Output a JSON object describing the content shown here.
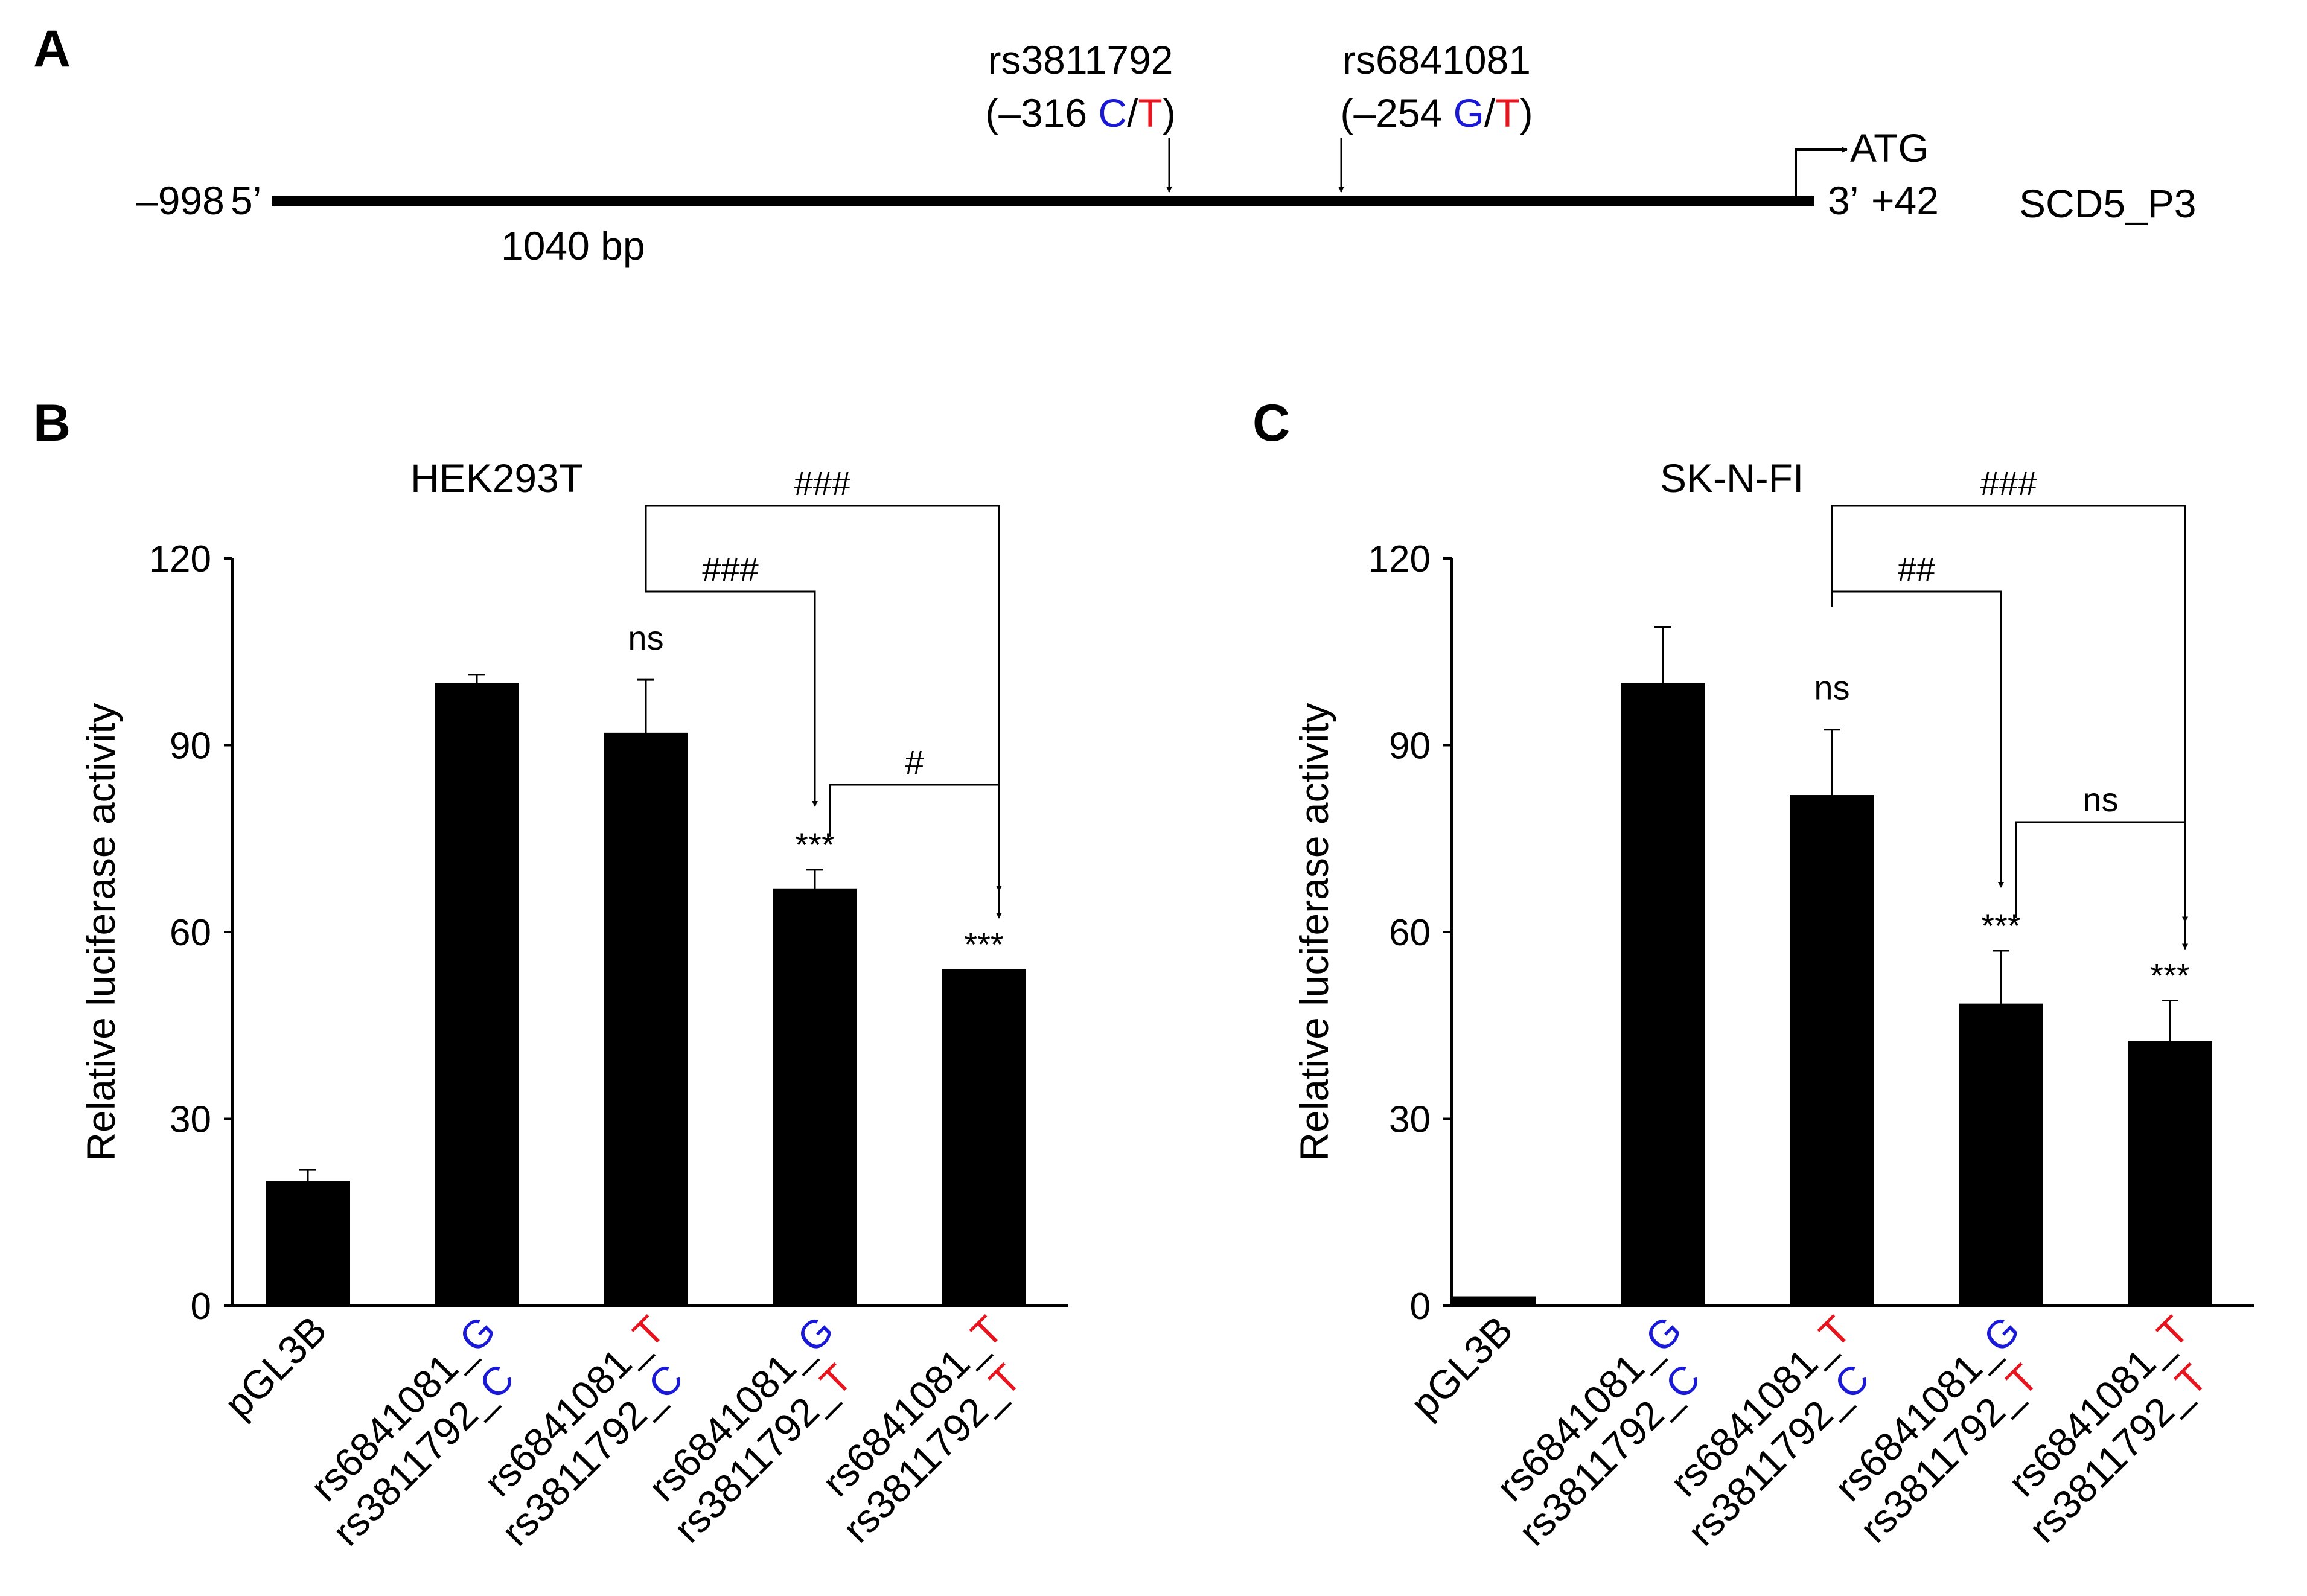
{
  "colors": {
    "allele_blue": "#1a1ad6",
    "allele_red": "#e8141e",
    "bar": "#000000"
  },
  "panel_a": {
    "letter": "A",
    "left_coord": "–998",
    "left_end": "5’",
    "right_end": "3’",
    "right_coord": "+42",
    "start_codon": "ATG",
    "length": "1040 bp",
    "construct": "SCD5_P3",
    "snps": [
      {
        "id": "rs3811792",
        "paren_open": "(",
        "pos": "–316",
        "ref": "C",
        "sep": "/",
        "alt": "T",
        "paren_close": ")"
      },
      {
        "id": "rs6841081",
        "paren_open": "(",
        "pos": "–254",
        "ref": "G",
        "sep": "/",
        "alt": "T",
        "paren_close": ")"
      }
    ]
  },
  "x_labels": [
    {
      "line1": "pGL3B"
    },
    {
      "line1": "rs6841081_",
      "a1": "G",
      "a1_color": "blue",
      "line2": "rs3811792_",
      "a2": "C",
      "a2_color": "blue"
    },
    {
      "line1": "rs6841081_",
      "a1": "T",
      "a1_color": "red",
      "line2": "rs3811792_",
      "a2": "C",
      "a2_color": "blue"
    },
    {
      "line1": "rs6841081_",
      "a1": "G",
      "a1_color": "blue",
      "line2": "rs3811792_",
      "a2": "T",
      "a2_color": "red"
    },
    {
      "line1": "rs6841081_",
      "a1": "T",
      "a1_color": "red",
      "line2": "rs3811792_",
      "a2": "T",
      "a2_color": "red"
    }
  ],
  "chart_data": [
    {
      "panel": "B",
      "type": "bar",
      "title": "HEK293T",
      "ylabel": "Relative luciferase activity",
      "ylim": [
        0,
        120
      ],
      "yticks": [
        0,
        30,
        60,
        90,
        120
      ],
      "categories": [
        "pGL3B",
        "rs6841081_G rs3811792_C",
        "rs6841081_T rs3811792_C",
        "rs6841081_G rs3811792_T",
        "rs6841081_T rs3811792_T"
      ],
      "values": [
        20,
        100,
        92,
        67,
        54
      ],
      "errors": [
        1.8,
        1.3,
        8.5,
        3,
        0
      ],
      "markers": [
        "",
        "",
        "ns",
        "***",
        "***"
      ],
      "comparisons": [
        {
          "from": 2,
          "to": 3,
          "label": "###"
        },
        {
          "from": 2,
          "to": 4,
          "label": "###"
        },
        {
          "from": 3,
          "to": 4,
          "label": "#"
        }
      ]
    },
    {
      "panel": "C",
      "type": "bar",
      "title": "SK-N-FI",
      "ylabel": "Relative luciferase activity",
      "ylim": [
        0,
        120
      ],
      "yticks": [
        0,
        30,
        60,
        90,
        120
      ],
      "categories": [
        "pGL3B",
        "rs6841081_G rs3811792_C",
        "rs6841081_T rs3811792_C",
        "rs6841081_G rs3811792_T",
        "rs6841081_T rs3811792_T"
      ],
      "values": [
        1.5,
        100,
        82,
        48.5,
        42.5
      ],
      "errors": [
        0,
        9,
        10.5,
        8.5,
        6.5
      ],
      "markers": [
        "",
        "",
        "ns",
        "***",
        "***"
      ],
      "comparisons": [
        {
          "from": 2,
          "to": 3,
          "label": "##"
        },
        {
          "from": 2,
          "to": 4,
          "label": "###"
        },
        {
          "from": 3,
          "to": 4,
          "label": "ns"
        }
      ]
    }
  ]
}
